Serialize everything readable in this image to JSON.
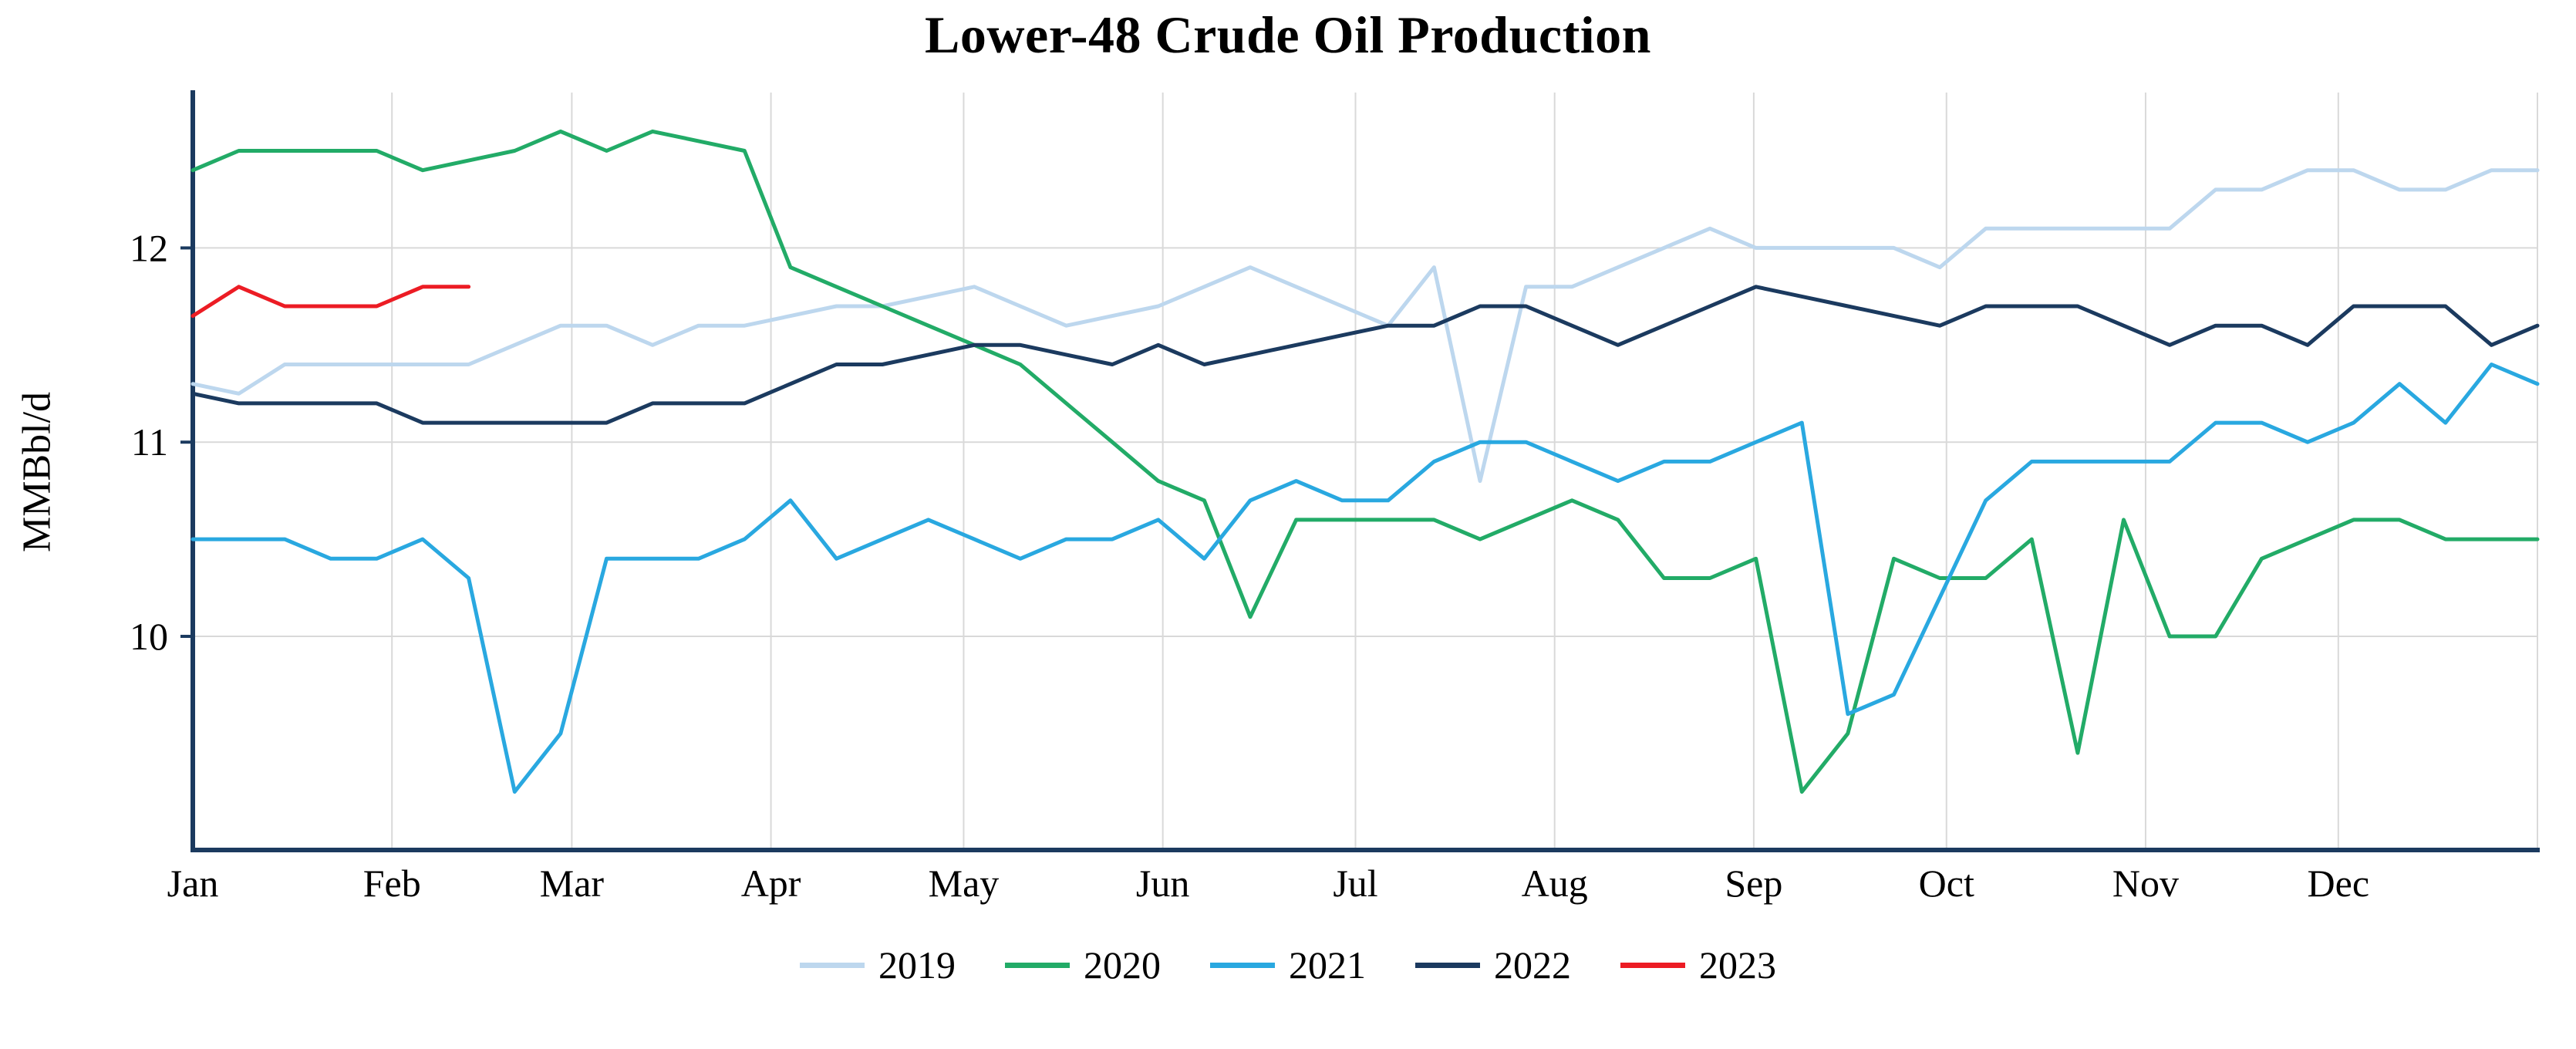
{
  "page": {
    "background": "#ffffff"
  },
  "chart_data": {
    "type": "line",
    "title": "Lower-48 Crude Oil Production",
    "ylabel": "MMBbl/d",
    "xlabel": "",
    "x_unit": "week-of-year",
    "points_per_full_year": 52,
    "months": [
      "Jan",
      "Feb",
      "Mar",
      "Apr",
      "May",
      "Jun",
      "Jul",
      "Aug",
      "Sep",
      "Oct",
      "Nov",
      "Dec"
    ],
    "month_start_days": [
      0,
      31,
      59,
      90,
      120,
      151,
      181,
      212,
      243,
      273,
      304,
      334
    ],
    "days_in_year": 365,
    "yticks": [
      10,
      11,
      12
    ],
    "ylim": [
      8.9,
      12.8
    ],
    "grid": true,
    "grid_color": "#d9d9d9",
    "axis_color": "#1b3a5f",
    "legend_position": "bottom",
    "series": [
      {
        "name": "2019",
        "color": "#bdd7ee",
        "values": [
          11.3,
          11.25,
          11.4,
          11.4,
          11.4,
          11.4,
          11.4,
          11.5,
          11.6,
          11.6,
          11.5,
          11.6,
          11.6,
          11.65,
          11.7,
          11.7,
          11.75,
          11.8,
          11.7,
          11.6,
          11.65,
          11.7,
          11.8,
          11.9,
          11.8,
          11.7,
          11.6,
          11.9,
          10.8,
          11.8,
          11.8,
          11.9,
          12.0,
          12.1,
          12.0,
          12.0,
          12.0,
          12.0,
          11.9,
          12.1,
          12.1,
          12.1,
          12.1,
          12.1,
          12.3,
          12.3,
          12.4,
          12.4,
          12.3,
          12.3,
          12.4,
          12.4
        ]
      },
      {
        "name": "2020",
        "color": "#22ab67",
        "values": [
          12.4,
          12.5,
          12.5,
          12.5,
          12.5,
          12.4,
          12.45,
          12.5,
          12.6,
          12.5,
          12.6,
          12.55,
          12.5,
          11.9,
          11.8,
          11.7,
          11.6,
          11.5,
          11.4,
          11.2,
          11.0,
          10.8,
          10.7,
          10.1,
          10.6,
          10.6,
          10.6,
          10.6,
          10.5,
          10.6,
          10.7,
          10.6,
          10.3,
          10.3,
          10.4,
          9.2,
          9.5,
          10.4,
          10.3,
          10.3,
          10.5,
          9.4,
          10.6,
          10.0,
          10.0,
          10.4,
          10.5,
          10.6,
          10.6,
          10.5,
          10.5,
          10.5
        ]
      },
      {
        "name": "2021",
        "color": "#29a8e0",
        "values": [
          10.5,
          10.5,
          10.5,
          10.4,
          10.4,
          10.5,
          10.3,
          9.2,
          9.5,
          10.4,
          10.4,
          10.4,
          10.5,
          10.7,
          10.4,
          10.5,
          10.6,
          10.5,
          10.4,
          10.5,
          10.5,
          10.6,
          10.4,
          10.7,
          10.8,
          10.7,
          10.7,
          10.9,
          11.0,
          11.0,
          10.9,
          10.8,
          10.9,
          10.9,
          11.0,
          11.1,
          9.6,
          9.7,
          10.2,
          10.7,
          10.9,
          10.9,
          10.9,
          10.9,
          11.1,
          11.1,
          11.0,
          11.1,
          11.3,
          11.1,
          11.4,
          11.3
        ]
      },
      {
        "name": "2022",
        "color": "#1b3a5f",
        "values": [
          11.25,
          11.2,
          11.2,
          11.2,
          11.2,
          11.1,
          11.1,
          11.1,
          11.1,
          11.1,
          11.2,
          11.2,
          11.2,
          11.3,
          11.4,
          11.4,
          11.45,
          11.5,
          11.5,
          11.45,
          11.4,
          11.5,
          11.4,
          11.45,
          11.5,
          11.55,
          11.6,
          11.6,
          11.7,
          11.7,
          11.6,
          11.5,
          11.6,
          11.7,
          11.8,
          11.75,
          11.7,
          11.65,
          11.6,
          11.7,
          11.7,
          11.7,
          11.6,
          11.5,
          11.6,
          11.6,
          11.5,
          11.7,
          11.7,
          11.7,
          11.5,
          11.6
        ]
      },
      {
        "name": "2023",
        "color": "#ec1c24",
        "values": [
          11.65,
          11.8,
          11.7,
          11.7,
          11.7,
          11.8,
          11.8
        ]
      }
    ]
  }
}
